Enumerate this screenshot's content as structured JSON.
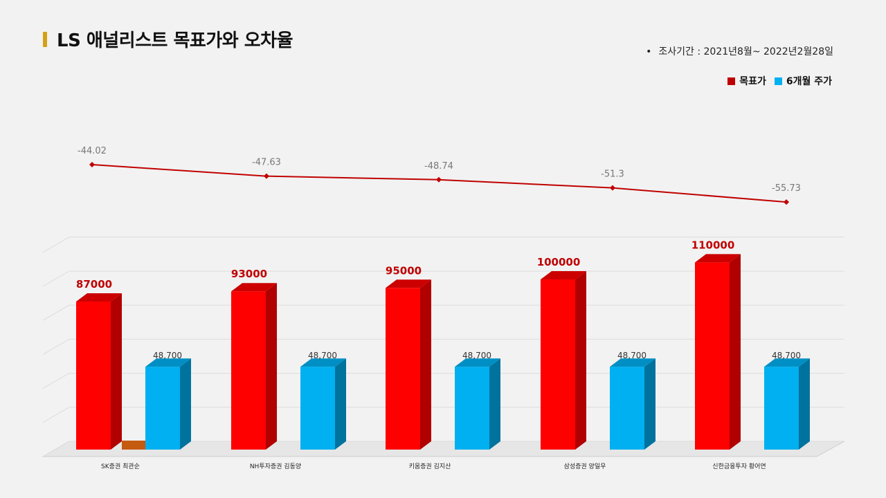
{
  "header": {
    "title": "LS 애널리스트 목표가와 오차율",
    "period_bullet": "•",
    "period": "조사기간 : 2021년8월~ 2022년2월28일"
  },
  "legend": {
    "target_label": "목표가",
    "price_label": "6개월 주가"
  },
  "colors": {
    "target": "#ff0000",
    "price": "#00b0f0",
    "line": "#c00000",
    "accent": "#d4a017"
  },
  "chart_data": {
    "type": "bar",
    "categories": [
      "SK증권 최관순",
      "NH투자증권 김동양",
      "키움증권 김지산",
      "삼성증권 양일우",
      "신한금융투자 황어연"
    ],
    "series": [
      {
        "name": "목표가",
        "values": [
          87000,
          93000,
          95000,
          100000,
          110000
        ],
        "labels": [
          "87000",
          "93000",
          "95000",
          "100000",
          "110000"
        ]
      },
      {
        "name": "6개월 주가",
        "values": [
          48700,
          48700,
          48700,
          48700,
          48700
        ],
        "labels": [
          "48,700",
          "48,700",
          "48,700",
          "48,700",
          "48,700"
        ]
      }
    ],
    "error_rate": {
      "values": [
        -44.02,
        -47.63,
        -48.74,
        -51.3,
        -55.73
      ],
      "labels": [
        "-44.02",
        "-47.63",
        "-48.74",
        "-51.3",
        "-55.73"
      ]
    },
    "grid": true
  }
}
